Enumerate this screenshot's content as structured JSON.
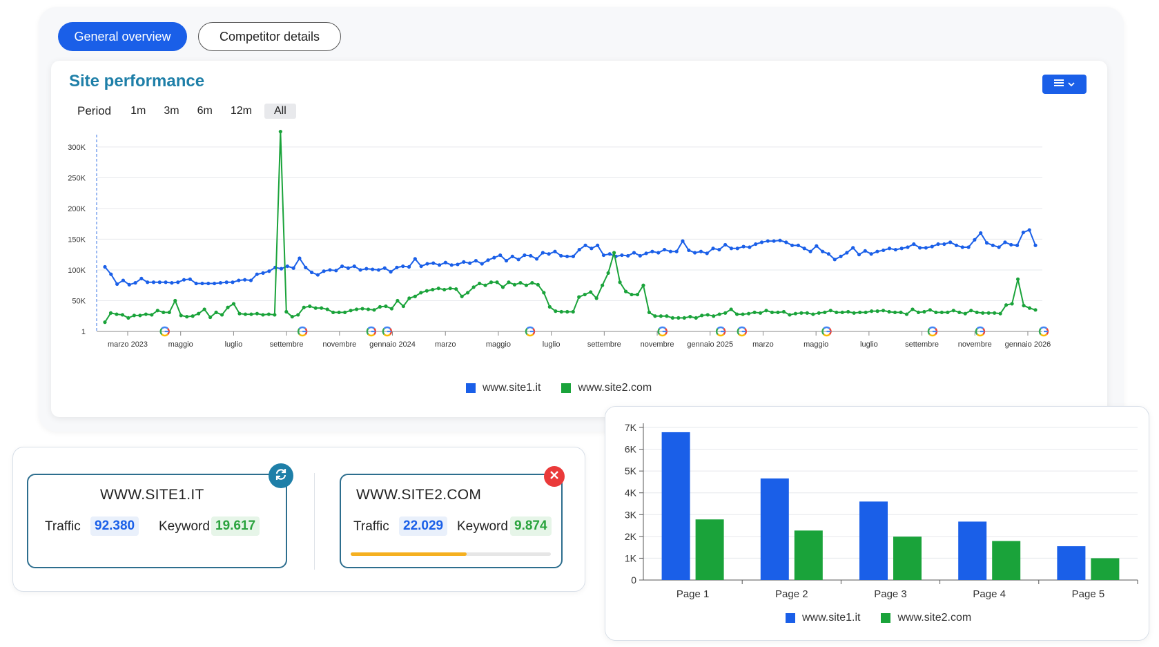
{
  "tabs": {
    "active": "General overview",
    "inactive": "Competitor details"
  },
  "performance": {
    "title": "Site performance",
    "period_label": "Period",
    "periods": [
      "1m",
      "3m",
      "6m",
      "12m",
      "All"
    ],
    "selected_period": "All"
  },
  "colors": {
    "site1": "#1a5fe8",
    "site2": "#1aa33a",
    "accent": "#1e7fa8",
    "progress": "#f5b020"
  },
  "icons": [
    "menu-icon",
    "chevron-down-icon",
    "google-icon",
    "refresh-icon",
    "close-icon"
  ],
  "sites": {
    "site1": {
      "name": "WWW.SITE1.IT",
      "traffic_label": "Traffic",
      "traffic": "92.380",
      "keyword_label": "Keyword",
      "keyword": "19.617"
    },
    "site2": {
      "name": "WWW.SITE2.COM",
      "traffic_label": "Traffic",
      "traffic": "22.029",
      "keyword_label": "Keyword",
      "keyword": "9.874",
      "progress": 0.58
    }
  },
  "legend": {
    "site1": "www.site1.it",
    "site2": "www.site2.com"
  },
  "chart_data": [
    {
      "type": "line",
      "x_ticks": [
        "marzo 2023",
        "maggio",
        "luglio",
        "settembre",
        "novembre",
        "gennaio 2024",
        "marzo",
        "maggio",
        "luglio",
        "settembre",
        "novembre",
        "gennaio 2025",
        "marzo",
        "maggio",
        "luglio",
        "settembre",
        "novembre",
        "gennaio 2026"
      ],
      "y_ticks": [
        "1",
        "50K",
        "100K",
        "150K",
        "200K",
        "250K",
        "300K"
      ],
      "ylim": [
        0,
        320000
      ],
      "google_updates": [
        0.7,
        3.3,
        4.6,
        4.9,
        7.6,
        10.1,
        11.2,
        11.6,
        13.2,
        15.2,
        16.1,
        17.3
      ],
      "series": [
        {
          "name": "www.site1.it",
          "values": [
            105000,
            93000,
            77000,
            83000,
            76000,
            79000,
            86000,
            80000,
            80000,
            80000,
            80000,
            79000,
            80000,
            84000,
            85000,
            78000,
            78000,
            78000,
            78000,
            79000,
            80000,
            80000,
            83000,
            84000,
            83000,
            93000,
            95000,
            98000,
            104000,
            102000,
            106000,
            103000,
            119000,
            104000,
            96000,
            92000,
            98000,
            100000,
            99000,
            106000,
            103000,
            106000,
            100000,
            102000,
            101000,
            100000,
            103000,
            97000,
            104000,
            106000,
            105000,
            118000,
            106000,
            110000,
            111000,
            108000,
            112000,
            108000,
            109000,
            113000,
            111000,
            115000,
            110000,
            116000,
            120000,
            124000,
            115000,
            122000,
            117000,
            124000,
            123000,
            118000,
            128000,
            126000,
            130000,
            123000,
            122000,
            122000,
            133000,
            140000,
            135000,
            140000,
            124000,
            126000,
            122000,
            124000,
            123000,
            128000,
            123000,
            127000,
            130000,
            128000,
            133000,
            130000,
            130000,
            147000,
            132000,
            128000,
            130000,
            127000,
            135000,
            133000,
            141000,
            135000,
            135000,
            138000,
            137000,
            142000,
            145000,
            147000,
            147000,
            148000,
            145000,
            140000,
            140000,
            135000,
            130000,
            139000,
            130000,
            126000,
            117000,
            122000,
            128000,
            136000,
            125000,
            131000,
            126000,
            130000,
            132000,
            135000,
            133000,
            135000,
            137000,
            142000,
            136000,
            136000,
            138000,
            142000,
            142000,
            145000,
            140000,
            137000,
            137000,
            149000,
            160000,
            144000,
            140000,
            137000,
            145000,
            141000,
            140000,
            161000,
            165000,
            140000
          ],
          "color": "#1a5fe8"
        },
        {
          "name": "www.site2.com",
          "values": [
            15000,
            30000,
            28000,
            27000,
            22000,
            26000,
            26000,
            28000,
            27000,
            34000,
            31000,
            31000,
            50000,
            26000,
            24000,
            25000,
            29000,
            36000,
            23000,
            31000,
            27000,
            39000,
            45000,
            29000,
            28000,
            28000,
            29000,
            27000,
            28000,
            27000,
            325000,
            32000,
            24000,
            27000,
            39000,
            41000,
            38000,
            38000,
            36000,
            31000,
            31000,
            31000,
            34000,
            36000,
            37000,
            36000,
            35000,
            40000,
            41000,
            37000,
            50000,
            41000,
            54000,
            57000,
            63000,
            66000,
            68000,
            70000,
            68000,
            70000,
            69000,
            57000,
            63000,
            72000,
            78000,
            75000,
            80000,
            80000,
            72000,
            80000,
            76000,
            79000,
            75000,
            79000,
            76000,
            63000,
            40000,
            33000,
            32000,
            32000,
            32000,
            56000,
            60000,
            64000,
            54000,
            75000,
            95000,
            128000,
            80000,
            65000,
            60000,
            60000,
            75000,
            31000,
            25000,
            25000,
            25000,
            22000,
            22000,
            22000,
            24000,
            22000,
            26000,
            27000,
            25000,
            28000,
            30000,
            36000,
            28000,
            28000,
            29000,
            31000,
            30000,
            34000,
            31000,
            31000,
            32000,
            27000,
            29000,
            30000,
            30000,
            28000,
            30000,
            31000,
            34000,
            31000,
            31000,
            32000,
            30000,
            31000,
            31000,
            33000,
            33000,
            34000,
            32000,
            31000,
            31000,
            28000,
            36000,
            31000,
            32000,
            35000,
            31000,
            31000,
            31000,
            34000,
            31000,
            29000,
            34000,
            31000,
            30000,
            30000,
            30000,
            29000,
            43000,
            45000,
            85000,
            42000,
            38000,
            35000
          ],
          "color": "#1aa33a"
        }
      ]
    },
    {
      "type": "bar",
      "categories": [
        "Page 1",
        "Page 2",
        "Page 3",
        "Page 4",
        "Page 5"
      ],
      "y_ticks": [
        "0",
        "1K",
        "2K",
        "3K",
        "4K",
        "5K",
        "6K",
        "7K"
      ],
      "ylim": [
        0,
        7000
      ],
      "series": [
        {
          "name": "www.site1.it",
          "values": [
            6780,
            4660,
            3600,
            2680,
            1550
          ],
          "color": "#1a5fe8"
        },
        {
          "name": "www.site2.com",
          "values": [
            2780,
            2270,
            1990,
            1790,
            1000
          ],
          "color": "#1aa33a"
        }
      ]
    }
  ]
}
